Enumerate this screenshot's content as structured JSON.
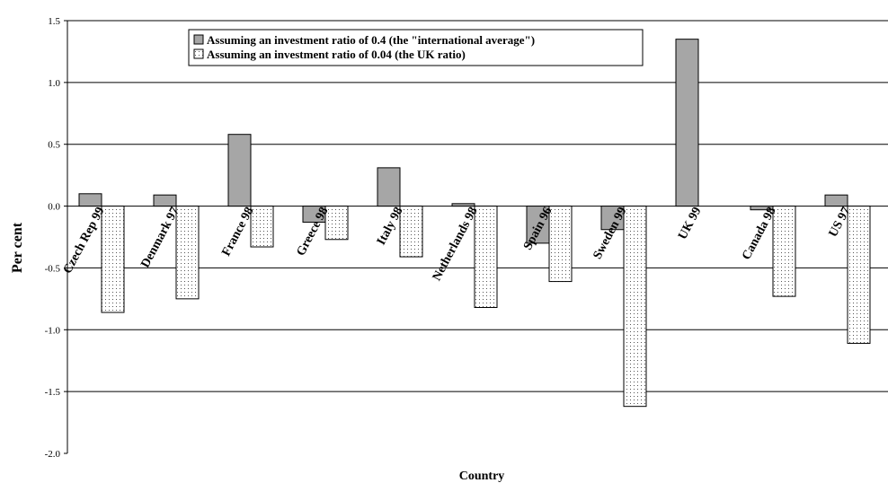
{
  "chart_data": {
    "type": "bar",
    "title": "",
    "xlabel": "Country",
    "ylabel": "Per cent",
    "ylim": [
      -2.0,
      1.5
    ],
    "yticks": [
      -2.0,
      -1.5,
      -1.0,
      -0.5,
      0.0,
      0.5,
      1.0,
      1.5
    ],
    "ytick_labels": [
      "-2.0",
      "-1.5",
      "-1.0",
      "-0.5",
      "0.0",
      "0.5",
      "1.0",
      "1.5"
    ],
    "grid": "horizontal",
    "legend_position": "top-center",
    "categories": [
      "Czech Rep 99",
      "Denmark 97",
      "France 98",
      "Greece 98",
      "Italy 98",
      "Netherlands 98",
      "Spain 96",
      "Sweden 99",
      "UK 99",
      "Canada 98",
      "US 97"
    ],
    "series": [
      {
        "name": "Assuming an investment ratio of 0.4 (the \"international average\")",
        "color": "#a6a6a6",
        "pattern": "solid",
        "values": [
          0.1,
          0.09,
          0.58,
          -0.13,
          0.31,
          0.02,
          -0.3,
          -0.19,
          1.35,
          -0.03,
          0.09
        ]
      },
      {
        "name": "Assuming an investment ratio of 0.04 (the UK ratio)",
        "color": "#ffffff",
        "pattern": "dotted",
        "values": [
          -0.86,
          -0.75,
          -0.33,
          -0.27,
          -0.41,
          -0.82,
          -0.61,
          -1.62,
          0.0,
          -0.73,
          -1.11
        ]
      }
    ]
  }
}
